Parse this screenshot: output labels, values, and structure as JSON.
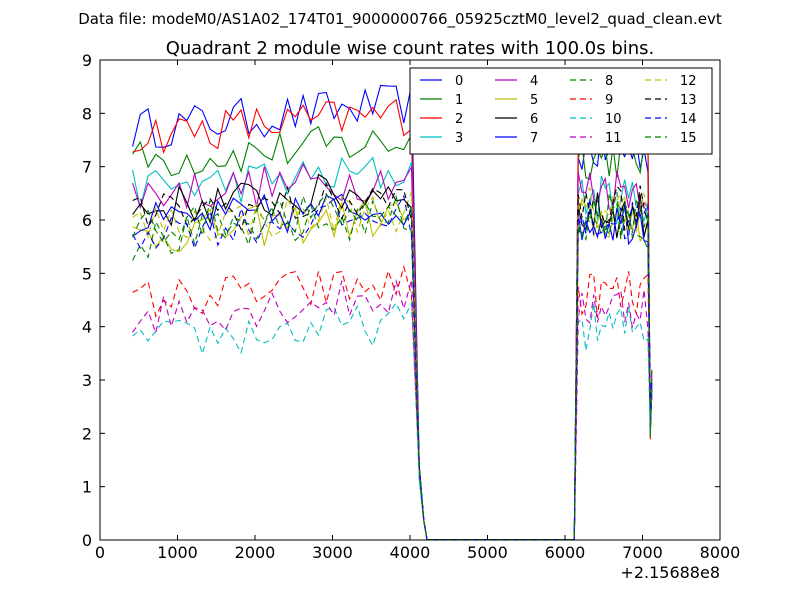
{
  "suptitle": "Data file: modeM0/AS1A02_174T01_9000000766_05925cztM0_level2_quad_clean.evt",
  "chart_data": {
    "type": "line",
    "title": "Quadrant 2 module wise count rates with 100.0s bins.",
    "xlabel": "",
    "ylabel": "",
    "x_offset_label": "+2.15688e8",
    "xlim": [
      0,
      8000
    ],
    "ylim": [
      0,
      9
    ],
    "x_ticks": [
      0,
      1000,
      2000,
      3000,
      4000,
      5000,
      6000,
      7000,
      8000
    ],
    "y_ticks": [
      0,
      1,
      2,
      3,
      4,
      5,
      6,
      7,
      8,
      9
    ],
    "grid": false,
    "legend_placement": "top-right",
    "legend_columns": 4,
    "segments": [
      {
        "x_start": 420,
        "x_end": 4080,
        "step": 100
      },
      {
        "x_start": 4120,
        "x_end": 6120,
        "step": 100
      },
      {
        "x_start": 6170,
        "x_end": 7120,
        "step": 50
      }
    ],
    "series": [
      {
        "name": "0",
        "color": "#0000ff",
        "dash": "solid",
        "base1": 7.7,
        "ramp1": 0.5,
        "base3": 7.3
      },
      {
        "name": "1",
        "color": "#008000",
        "dash": "solid",
        "base1": 7.1,
        "ramp1": 0.4,
        "base3": 7.2
      },
      {
        "name": "2",
        "color": "#ff0000",
        "dash": "solid",
        "base1": 7.6,
        "ramp1": 0.4,
        "base3": 7.7
      },
      {
        "name": "3",
        "color": "#00bfbf",
        "dash": "solid",
        "base1": 6.6,
        "ramp1": 0.3,
        "base3": 6.4
      },
      {
        "name": "4",
        "color": "#bf00bf",
        "dash": "solid",
        "base1": 6.5,
        "ramp1": 0.3,
        "base3": 6.6
      },
      {
        "name": "5",
        "color": "#bfbf00",
        "dash": "solid",
        "base1": 5.7,
        "ramp1": 0.4,
        "base3": 6.0
      },
      {
        "name": "6",
        "color": "#000000",
        "dash": "solid",
        "base1": 6.2,
        "ramp1": 0.4,
        "base3": 6.1
      },
      {
        "name": "7",
        "color": "#0000ff",
        "dash": "solid",
        "base1": 5.9,
        "ramp1": 0.4,
        "base3": 6.0
      },
      {
        "name": "8",
        "color": "#008000",
        "dash": "dashed",
        "base1": 5.6,
        "ramp1": 0.5,
        "base3": 5.9
      },
      {
        "name": "9",
        "color": "#ff0000",
        "dash": "dashed",
        "base1": 4.5,
        "ramp1": 0.3,
        "base3": 4.6
      },
      {
        "name": "10",
        "color": "#00bfbf",
        "dash": "dashed",
        "base1": 3.7,
        "ramp1": 0.4,
        "base3": 4.0
      },
      {
        "name": "11",
        "color": "#bf00bf",
        "dash": "dashed",
        "base1": 4.2,
        "ramp1": 0.4,
        "base3": 4.4
      },
      {
        "name": "12",
        "color": "#bfbf00",
        "dash": "dashed",
        "base1": 5.9,
        "ramp1": 0.3,
        "base3": 6.2
      },
      {
        "name": "13",
        "color": "#000000",
        "dash": "dashed",
        "base1": 6.1,
        "ramp1": 0.3,
        "base3": 6.2
      },
      {
        "name": "14",
        "color": "#0000ff",
        "dash": "dashed",
        "base1": 5.8,
        "ramp1": 0.3,
        "base3": 6.0
      },
      {
        "name": "15",
        "color": "#008000",
        "dash": "dashed",
        "base1": 5.9,
        "ramp1": 0.3,
        "base3": 6.1
      }
    ]
  }
}
